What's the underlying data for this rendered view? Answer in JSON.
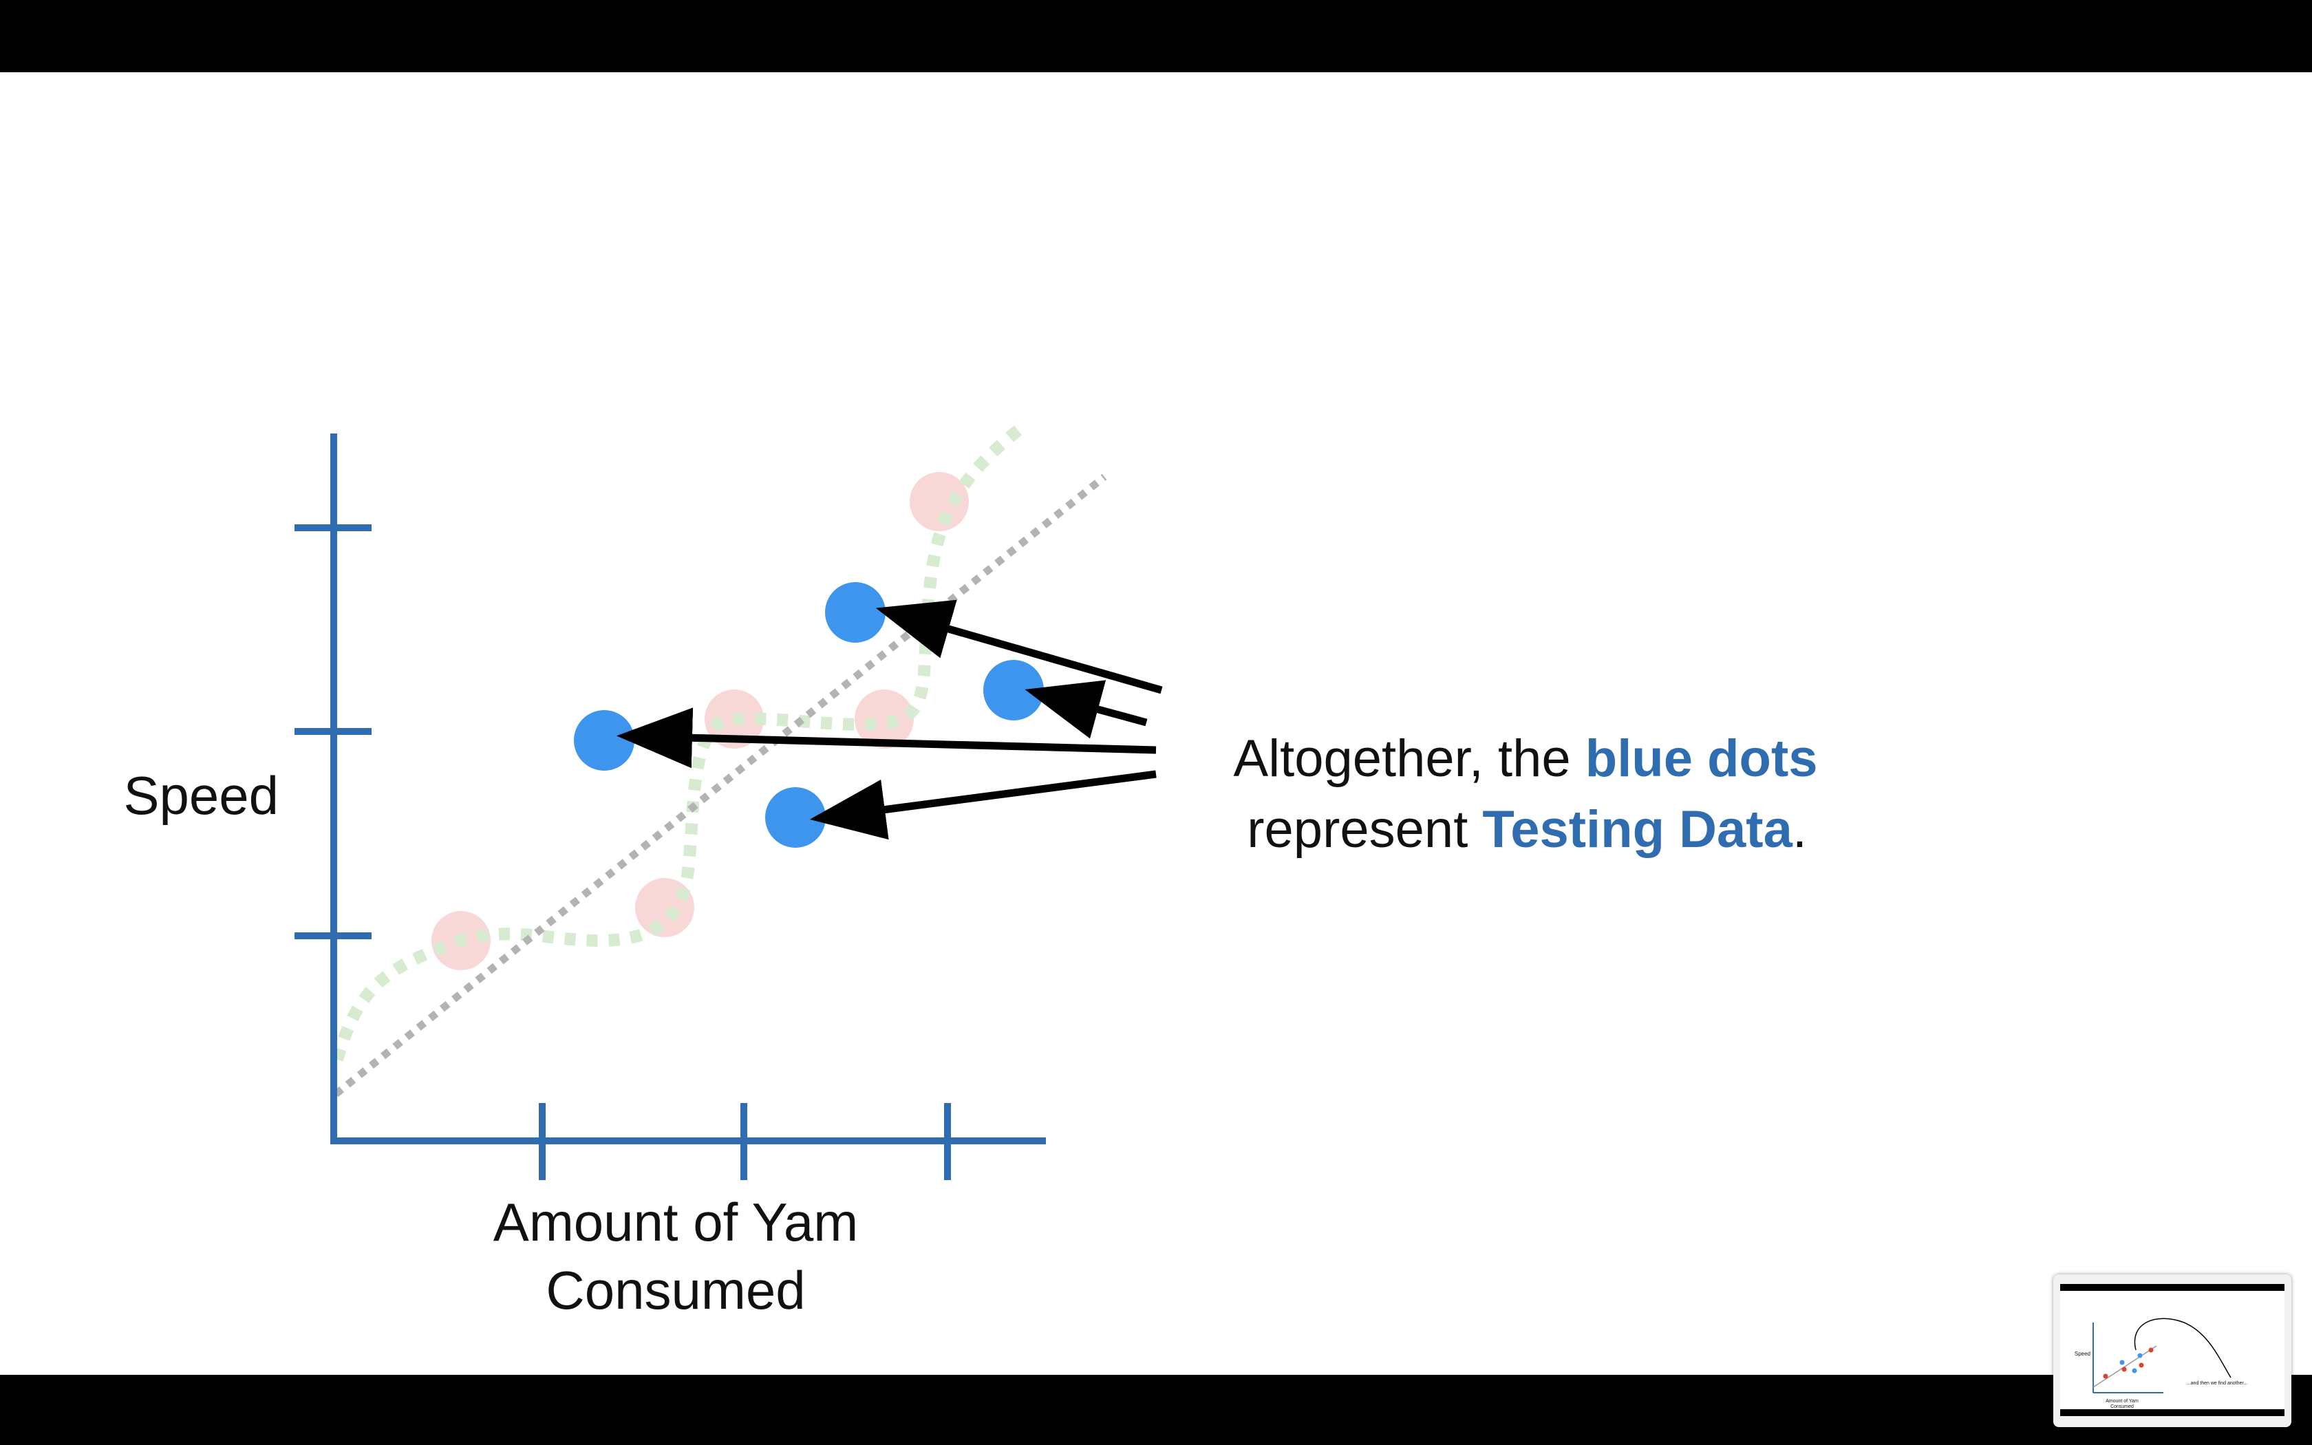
{
  "slide": {
    "y_axis_label": "Speed",
    "x_axis_label_line1": "Amount of Yam",
    "x_axis_label_line2": "Consumed",
    "callout": {
      "line1_prefix": "Altogether, the ",
      "line1_highlight": "blue dots",
      "line2_prefix": "represent ",
      "line2_highlight": "Testing Data",
      "line2_suffix": "."
    }
  },
  "thumbnail": {
    "y_axis_label": "Speed",
    "x_axis_label_line1": "Amount of Yam",
    "x_axis_label_line2": "Consumed",
    "caption": "...and then we find another..."
  },
  "colors": {
    "axis": "#2f6db0",
    "testing_dot": "#3d95ee",
    "training_dot": "#f6c9c9",
    "squiggle": "#d6ebd0",
    "fit_line": "#b3b3b3",
    "highlight_text": "#2f6db0",
    "text": "#111111",
    "arrow": "#000000"
  }
}
